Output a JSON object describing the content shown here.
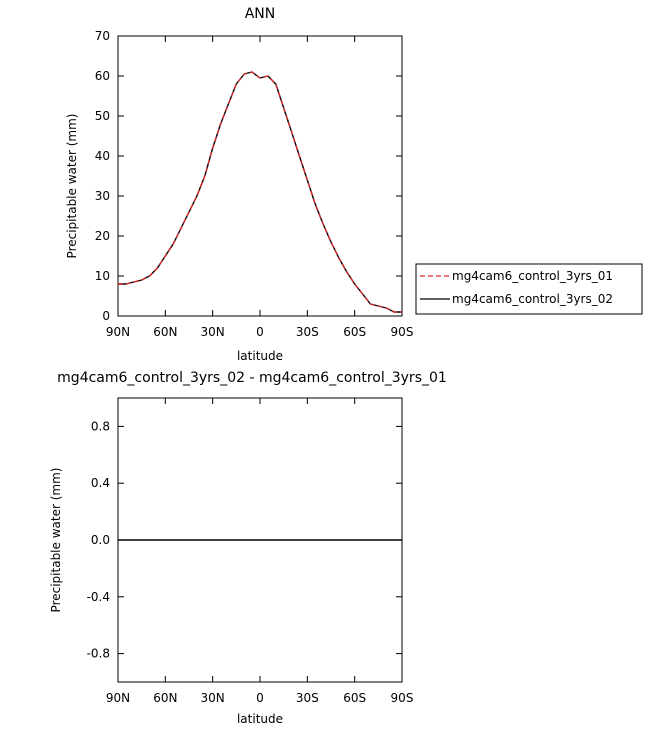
{
  "chart_data": [
    {
      "type": "line",
      "title": "ANN",
      "xlabel": "latitude",
      "ylabel": "Precipitable water (mm)",
      "xlim": [
        90,
        -90
      ],
      "ylim": [
        0,
        70
      ],
      "x_ticks": [
        90,
        60,
        30,
        0,
        -30,
        -60,
        -90
      ],
      "x_tick_labels": [
        "90N",
        "60N",
        "30N",
        "0",
        "30S",
        "60S",
        "90S"
      ],
      "y_ticks": [
        0,
        10,
        20,
        30,
        40,
        50,
        60,
        70
      ],
      "y_tick_labels": [
        "0",
        "10",
        "20",
        "30",
        "40",
        "50",
        "60",
        "70"
      ],
      "legend": "right",
      "series": [
        {
          "name": "mg4cam6_control_3yrs_01",
          "color": "#d62728",
          "dash": "dashed",
          "x": [
            90,
            85,
            80,
            75,
            70,
            65,
            60,
            55,
            50,
            45,
            40,
            35,
            30,
            25,
            20,
            15,
            10,
            5,
            0,
            -5,
            -10,
            -15,
            -20,
            -25,
            -30,
            -35,
            -40,
            -45,
            -50,
            -55,
            -60,
            -65,
            -70,
            -75,
            -80,
            -85,
            -90
          ],
          "y": [
            8,
            8,
            8.5,
            9,
            10,
            12,
            15,
            18,
            22,
            26,
            30,
            35,
            42,
            48,
            53,
            58,
            60.5,
            61,
            59.5,
            60,
            58,
            52,
            46,
            40,
            34,
            28,
            23,
            18.5,
            14.5,
            11,
            8,
            5.5,
            3,
            2.5,
            2,
            1,
            1
          ]
        },
        {
          "name": "mg4cam6_control_3yrs_02",
          "color": "#000000",
          "dash": "solid",
          "x": [
            90,
            85,
            80,
            75,
            70,
            65,
            60,
            55,
            50,
            45,
            40,
            35,
            30,
            25,
            20,
            15,
            10,
            5,
            0,
            -5,
            -10,
            -15,
            -20,
            -25,
            -30,
            -35,
            -40,
            -45,
            -50,
            -55,
            -60,
            -65,
            -70,
            -75,
            -80,
            -85,
            -90
          ],
          "y": [
            8,
            8,
            8.5,
            9,
            10,
            12,
            15,
            18,
            22,
            26,
            30,
            35,
            42,
            48,
            53,
            58,
            60.5,
            61,
            59.5,
            60,
            58,
            52,
            46,
            40,
            34,
            28,
            23,
            18.5,
            14.5,
            11,
            8,
            5.5,
            3,
            2.5,
            2,
            1,
            1
          ]
        }
      ]
    },
    {
      "type": "line",
      "title": "mg4cam6_control_3yrs_02 - mg4cam6_control_3yrs_01",
      "xlabel": "latitude",
      "ylabel": "Precipitable water (mm)",
      "xlim": [
        90,
        -90
      ],
      "ylim": [
        -1,
        1
      ],
      "x_ticks": [
        90,
        60,
        30,
        0,
        -30,
        -60,
        -90
      ],
      "x_tick_labels": [
        "90N",
        "60N",
        "30N",
        "0",
        "30S",
        "60S",
        "90S"
      ],
      "y_ticks": [
        -0.8,
        -0.4,
        0.0,
        0.4,
        0.8
      ],
      "y_tick_labels": [
        "-0.8",
        "-0.4",
        "0.0",
        "0.4",
        "0.8"
      ],
      "series": [
        {
          "color": "#000000",
          "dash": "solid",
          "x": [
            90,
            -90
          ],
          "y": [
            0,
            0
          ]
        }
      ]
    }
  ]
}
